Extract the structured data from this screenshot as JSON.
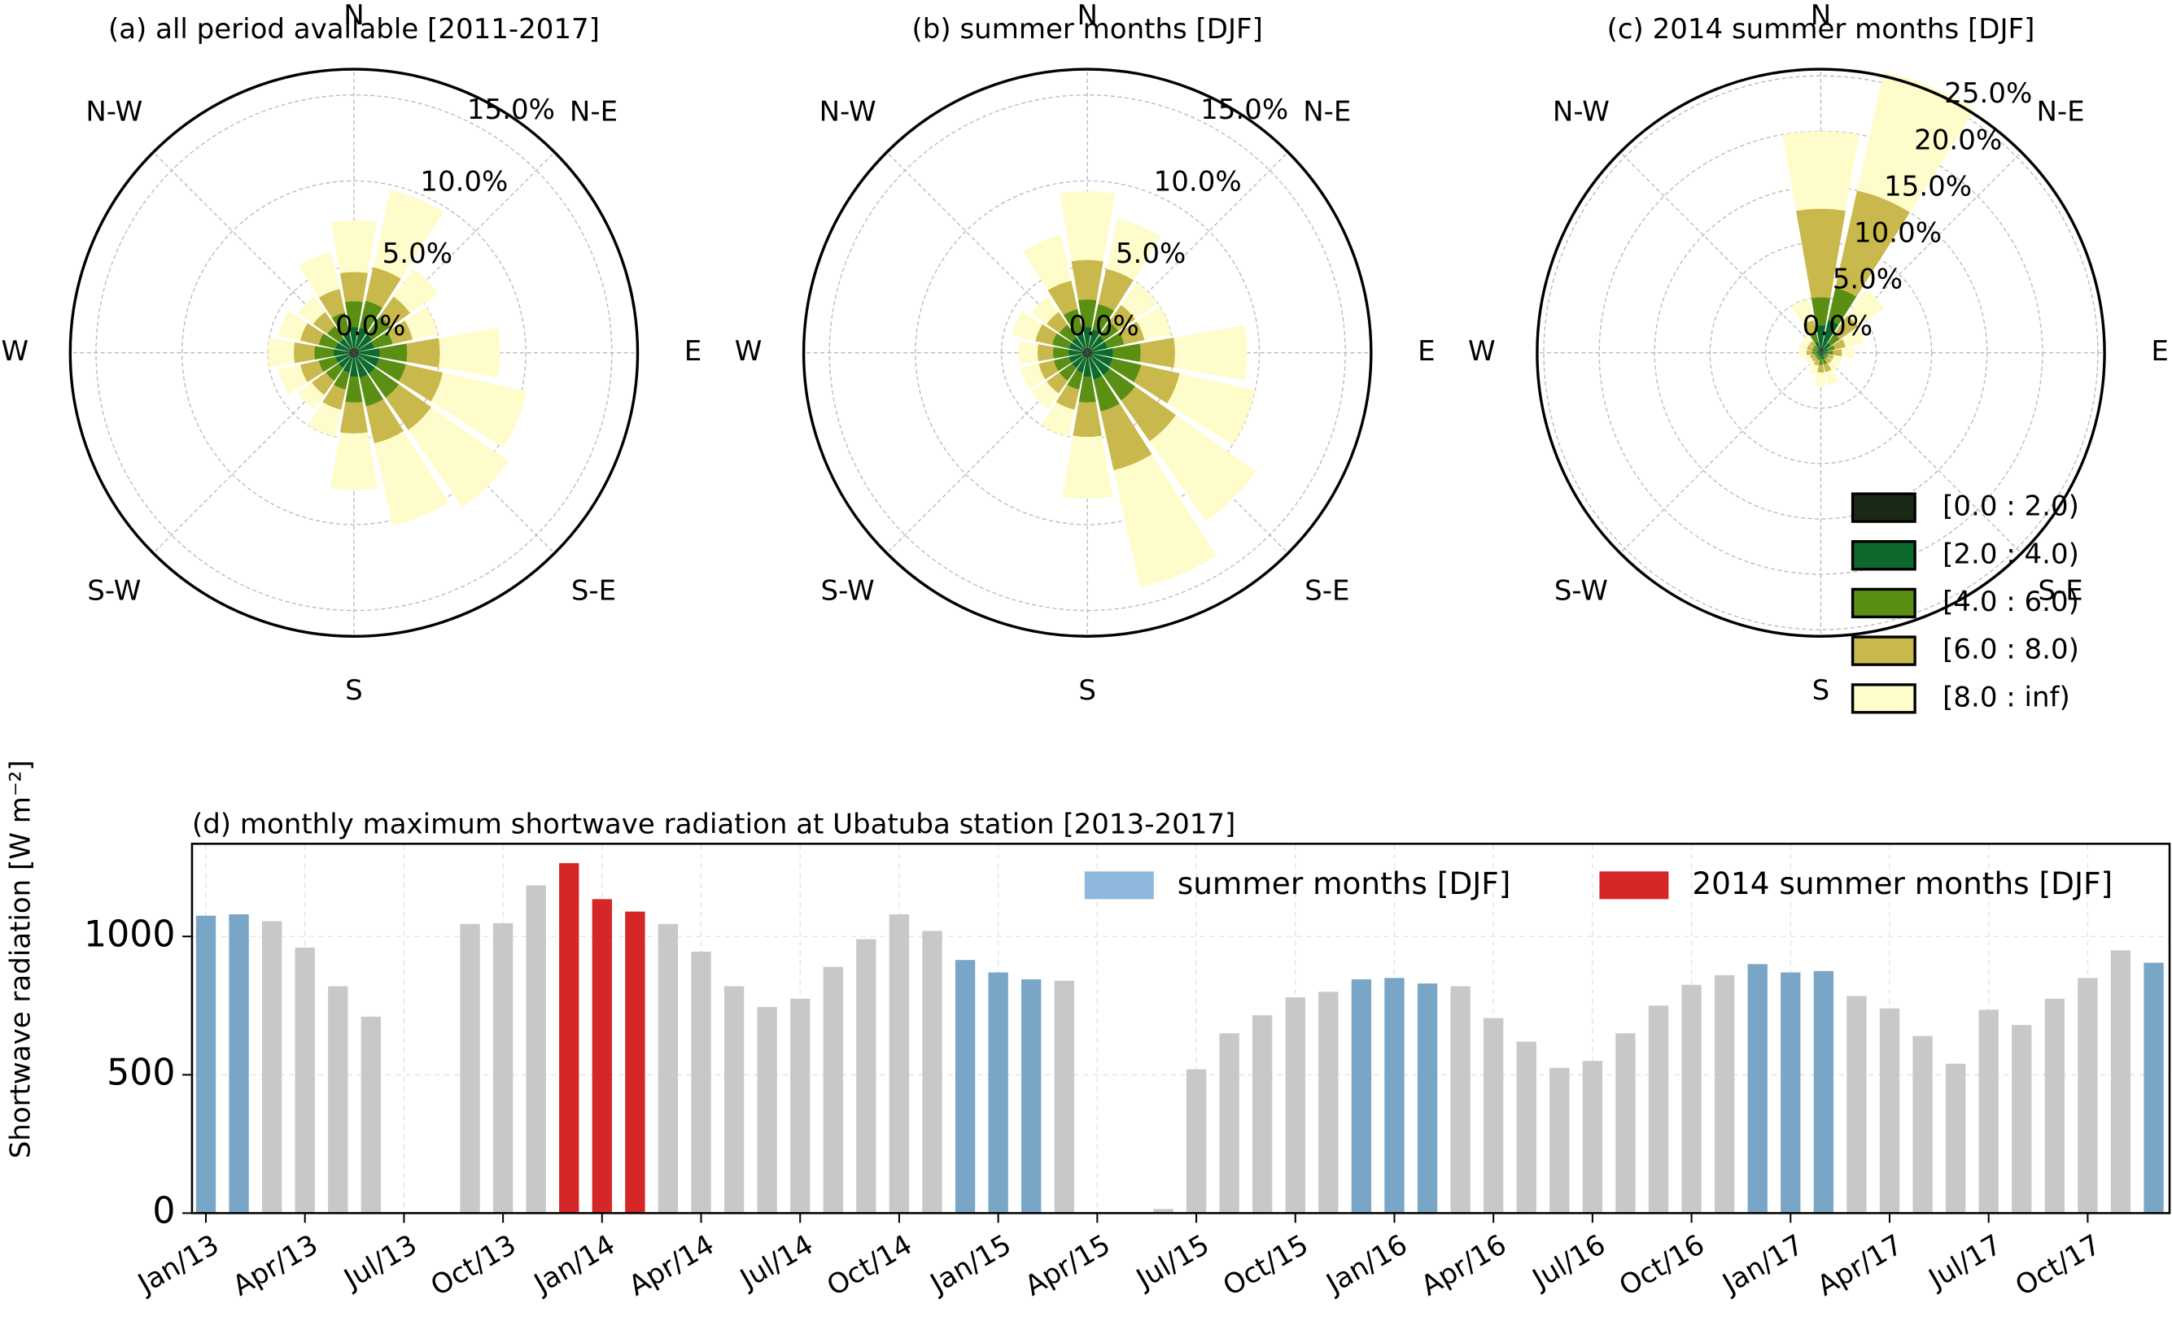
{
  "chart_data": [
    {
      "type": "windrose",
      "title": "(a) all period available [2011-2017]",
      "direction_labels": [
        "N",
        "N-E",
        "E",
        "S-E",
        "S",
        "S-W",
        "W",
        "N-W"
      ],
      "rlim": [
        0,
        16.5
      ],
      "rticks": [
        {
          "value": 0,
          "label": "0.0%"
        },
        {
          "value": 5,
          "label": "5.0%"
        },
        {
          "value": 10,
          "label": "10.0%"
        },
        {
          "value": 15,
          "label": "15.0%"
        }
      ],
      "series": [
        {
          "color": "#1b2a17",
          "values": [
            0.3,
            0.3,
            0.3,
            0.3,
            0.3,
            0.3,
            0.3,
            0.3,
            0.3,
            0.3,
            0.3,
            0.3,
            0.3,
            0.3,
            0.3,
            0.3
          ]
        },
        {
          "color": "#0d6a2c",
          "values": [
            1.2,
            1.2,
            1.0,
            0.9,
            1.2,
            1.2,
            1.2,
            1.2,
            1.1,
            0.9,
            0.8,
            0.8,
            0.9,
            0.8,
            0.7,
            0.9
          ]
        },
        {
          "color": "#5b8f14",
          "values": [
            1.5,
            1.6,
            1.3,
            1.1,
            1.6,
            1.6,
            1.7,
            1.7,
            1.5,
            1.0,
            0.9,
            1.0,
            1.1,
            1.0,
            0.9,
            1.2
          ]
        },
        {
          "color": "#c9b84b",
          "values": [
            1.7,
            2.0,
            1.4,
            1.2,
            1.9,
            2.2,
            2.3,
            2.2,
            1.8,
            1.2,
            1.0,
            1.1,
            1.2,
            1.1,
            1.0,
            1.4
          ]
        },
        {
          "color": "#fffccb",
          "values": [
            3.0,
            4.6,
            2.0,
            1.5,
            3.5,
            5.0,
            5.5,
            4.9,
            3.3,
            1.6,
            1.0,
            1.3,
            1.5,
            1.3,
            1.1,
            2.2
          ]
        }
      ]
    },
    {
      "type": "windrose",
      "title": "(b) summer months [DJF]",
      "direction_labels": [
        "N",
        "N-E",
        "E",
        "S-E",
        "S",
        "S-W",
        "W",
        "N-W"
      ],
      "rlim": [
        0,
        16.5
      ],
      "rticks": [
        {
          "value": 0,
          "label": "0.0%"
        },
        {
          "value": 5,
          "label": "5.0%"
        },
        {
          "value": 10,
          "label": "10.0%"
        },
        {
          "value": 15,
          "label": "15.0%"
        }
      ],
      "series": [
        {
          "color": "#1b2a17",
          "values": [
            0.3,
            0.3,
            0.3,
            0.3,
            0.3,
            0.3,
            0.3,
            0.3,
            0.3,
            0.3,
            0.3,
            0.3,
            0.3,
            0.3,
            0.3,
            0.3
          ]
        },
        {
          "color": "#0d6a2c",
          "values": [
            1.2,
            1.1,
            0.9,
            0.9,
            1.2,
            1.2,
            1.3,
            1.3,
            1.1,
            0.9,
            0.8,
            0.8,
            0.8,
            0.8,
            0.8,
            1.0
          ]
        },
        {
          "color": "#5b8f14",
          "values": [
            1.6,
            1.5,
            1.0,
            1.0,
            1.6,
            1.7,
            1.8,
            1.9,
            1.5,
            1.0,
            0.9,
            0.9,
            0.9,
            1.0,
            0.9,
            1.3
          ]
        },
        {
          "color": "#c9b84b",
          "values": [
            2.3,
            2.1,
            1.2,
            1.2,
            2.0,
            2.3,
            2.9,
            3.5,
            2.0,
            1.2,
            0.9,
            0.9,
            0.9,
            1.0,
            0.9,
            1.7
          ]
        },
        {
          "color": "#fffccb",
          "values": [
            4.0,
            3.0,
            1.6,
            1.6,
            4.2,
            4.5,
            5.7,
            7.0,
            3.6,
            1.6,
            1.1,
            1.1,
            1.1,
            1.4,
            1.1,
            2.7
          ]
        }
      ]
    },
    {
      "type": "windrose",
      "title": "(c) 2014 summer months [DJF]",
      "direction_labels": [
        "N",
        "N-E",
        "E",
        "S-E",
        "S",
        "S-W",
        "W",
        "N-W"
      ],
      "rlim": [
        0,
        25.6
      ],
      "rticks": [
        {
          "value": 0,
          "label": "0.0%"
        },
        {
          "value": 5,
          "label": "5.0%"
        },
        {
          "value": 10,
          "label": "10.0%"
        },
        {
          "value": 15,
          "label": "15.0%"
        },
        {
          "value": 20,
          "label": "20.0%"
        },
        {
          "value": 25,
          "label": "25.0%"
        }
      ],
      "legend": "lower right",
      "series": [
        {
          "name": "[0.0 : 2.0)",
          "color": "#1b2a17",
          "values": [
            0.5,
            0.5,
            0.3,
            0.2,
            0.2,
            0.1,
            0.1,
            0.2,
            0.2,
            0.1,
            0.1,
            0.1,
            0.1,
            0.1,
            0.1,
            0.3
          ]
        },
        {
          "name": "[2.0 : 4.0)",
          "color": "#0d6a2c",
          "values": [
            2,
            2.5,
            0.8,
            0.5,
            0.4,
            0.3,
            0.3,
            0.4,
            0.4,
            0.3,
            0.2,
            0.2,
            0.3,
            0.3,
            0.3,
            0.7
          ]
        },
        {
          "name": "[4.0 : 6.0)",
          "color": "#5b8f14",
          "values": [
            2.5,
            3,
            1,
            0.6,
            0.5,
            0.3,
            0.3,
            0.5,
            0.5,
            0.3,
            0.3,
            0.3,
            0.4,
            0.4,
            0.4,
            0.8
          ]
        },
        {
          "name": "[6.0 : 8.0)",
          "color": "#c9b84b",
          "values": [
            8,
            9,
            2,
            1,
            0.8,
            0.5,
            0.5,
            0.7,
            0.7,
            0.5,
            0.4,
            0.4,
            0.5,
            0.5,
            0.5,
            1.2
          ]
        },
        {
          "name": "[8.0 : inf)",
          "color": "#fffccb",
          "values": [
            7,
            11,
            2.9,
            1.7,
            1.1,
            0.8,
            0.8,
            1.2,
            1.2,
            0.8,
            0.5,
            0.5,
            0.7,
            0.7,
            0.7,
            2.0
          ]
        }
      ]
    },
    {
      "type": "bar",
      "title": "(d) monthly maximum shortwave radiation at Ubatuba station [2013-2017]",
      "y_label": "Shortwave radiation [W m⁻²]",
      "categories": [
        "Jan/13",
        null,
        null,
        "Apr/13",
        null,
        null,
        "Jul/13",
        null,
        null,
        "Oct/13",
        null,
        null,
        "Jan/14",
        null,
        null,
        "Apr/14",
        null,
        null,
        "Jul/14",
        null,
        null,
        "Oct/14",
        null,
        null,
        "Jan/15",
        null,
        null,
        "Apr/15",
        null,
        null,
        "Jul/15",
        null,
        null,
        "Oct/15",
        null,
        null,
        "Jan/16",
        null,
        null,
        "Apr/16",
        null,
        null,
        "Jul/16",
        null,
        null,
        "Oct/16",
        null,
        null,
        "Jan/17",
        null,
        null,
        "Apr/17",
        null,
        null,
        "Jul/17",
        null,
        null,
        "Oct/17",
        null,
        null
      ],
      "values": [
        1075,
        1080,
        1055,
        960,
        820,
        710,
        null,
        null,
        1045,
        1048,
        1185,
        1265,
        1135,
        1090,
        1045,
        945,
        820,
        745,
        775,
        890,
        990,
        1080,
        1020,
        915,
        870,
        845,
        840,
        null,
        null,
        15,
        520,
        650,
        715,
        780,
        800,
        845,
        850,
        830,
        820,
        705,
        620,
        525,
        550,
        650,
        750,
        825,
        860,
        900,
        870,
        875,
        785,
        740,
        640,
        540,
        735,
        680,
        775,
        850,
        950,
        905
      ],
      "bar_colors": [
        "#79a6c6",
        "#79a6c6",
        "#c8c8c8",
        "#c8c8c8",
        "#c8c8c8",
        "#c8c8c8",
        "#c8c8c8",
        "#c8c8c8",
        "#c8c8c8",
        "#c8c8c8",
        "#c8c8c8",
        "#d62728",
        "#d62728",
        "#d62728",
        "#c8c8c8",
        "#c8c8c8",
        "#c8c8c8",
        "#c8c8c8",
        "#c8c8c8",
        "#c8c8c8",
        "#c8c8c8",
        "#c8c8c8",
        "#c8c8c8",
        "#79a6c6",
        "#79a6c6",
        "#79a6c6",
        "#c8c8c8",
        "#c8c8c8",
        "#c8c8c8",
        "#c8c8c8",
        "#c8c8c8",
        "#c8c8c8",
        "#c8c8c8",
        "#c8c8c8",
        "#c8c8c8",
        "#79a6c6",
        "#79a6c6",
        "#79a6c6",
        "#c8c8c8",
        "#c8c8c8",
        "#c8c8c8",
        "#c8c8c8",
        "#c8c8c8",
        "#c8c8c8",
        "#c8c8c8",
        "#c8c8c8",
        "#c8c8c8",
        "#79a6c6",
        "#79a6c6",
        "#79a6c6",
        "#c8c8c8",
        "#c8c8c8",
        "#c8c8c8",
        "#c8c8c8",
        "#c8c8c8",
        "#c8c8c8",
        "#c8c8c8",
        "#c8c8c8",
        "#c8c8c8",
        "#79a6c6"
      ],
      "legend": [
        {
          "name": "summer months [DJF]",
          "color": "#8fb9dc"
        },
        {
          "name": "2014 summer months [DJF]",
          "color": "#d62728"
        }
      ],
      "ylim": [
        0,
        1335
      ],
      "yticks": [
        0,
        500,
        1000
      ],
      "grid": true
    }
  ]
}
